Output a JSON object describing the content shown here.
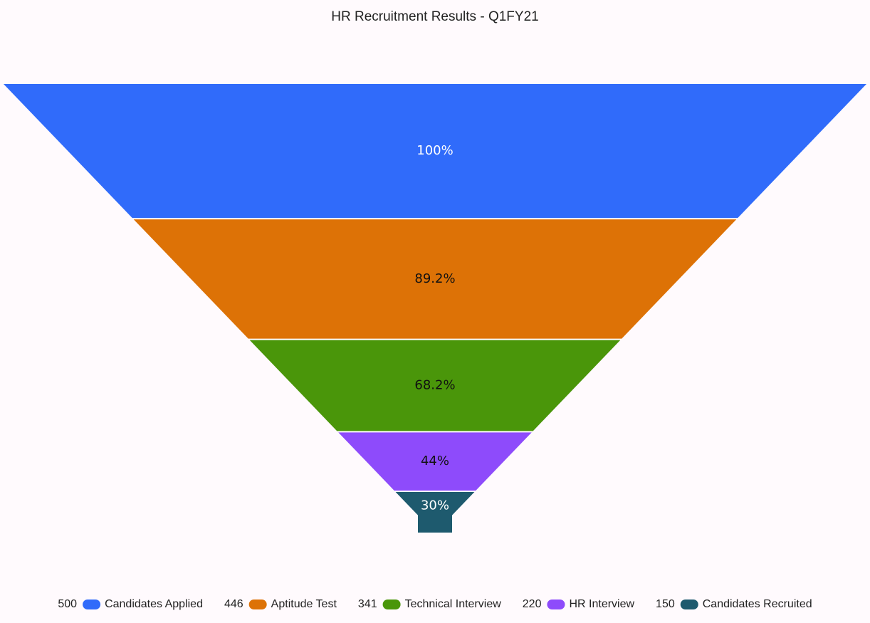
{
  "chart_data": {
    "type": "funnel",
    "title": "HR Recruitment Results - Q1FY21",
    "categories": [
      "Candidates Applied",
      "Aptitude Test",
      "Technical Interview",
      "HR Interview",
      "Candidates Recruited"
    ],
    "values": [
      500,
      446,
      341,
      220,
      150
    ],
    "value_labels": [
      "100%",
      "89.2%",
      "68.2%",
      "44%",
      "30%"
    ],
    "colors": [
      "#306bfa",
      "#dd7206",
      "#4a960a",
      "#8e4bfb",
      "#1e5a6e"
    ],
    "legend": "bottom"
  }
}
